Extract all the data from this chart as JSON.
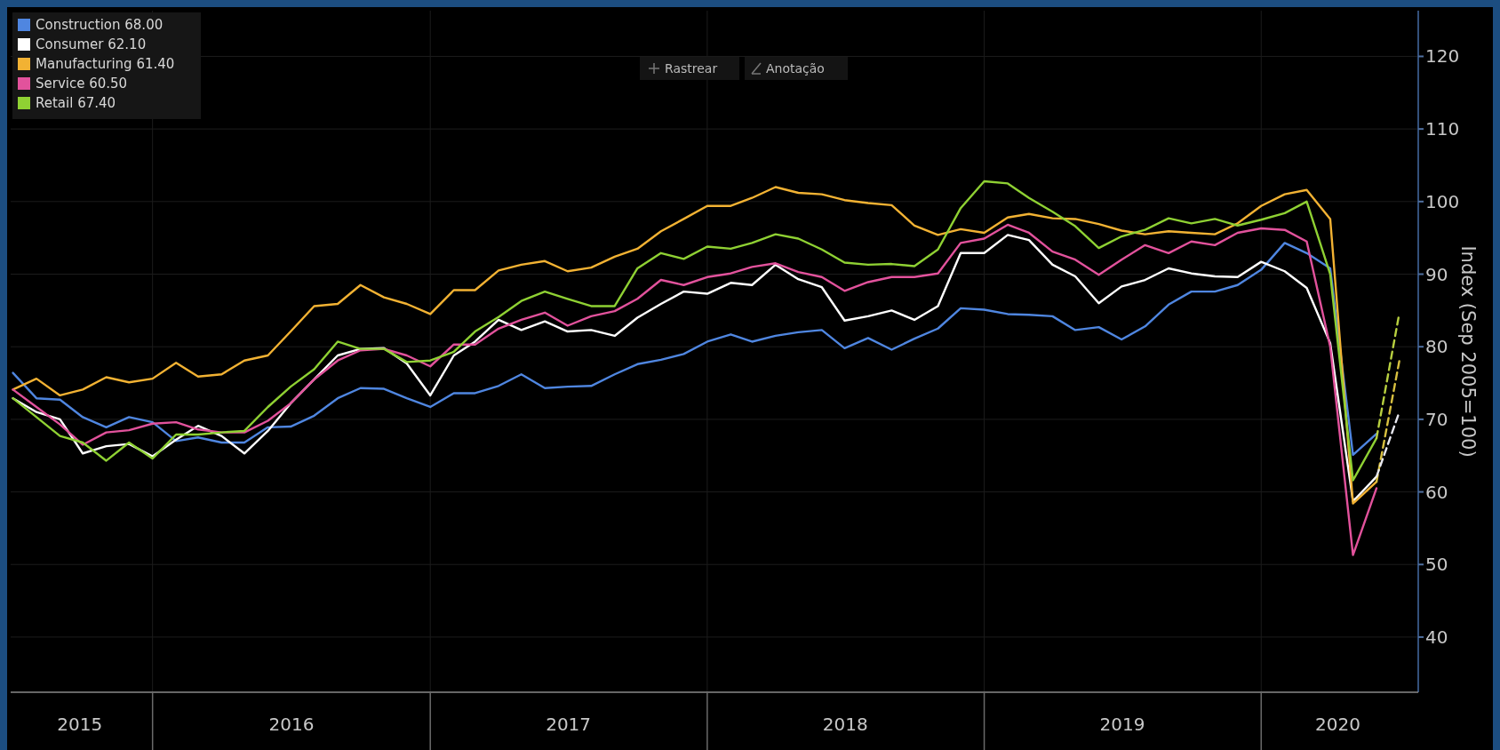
{
  "chart_data": {
    "type": "line",
    "ylabel": "Index (Sep 2005=100)",
    "annotations": [
      "Rastrear",
      "Anotação"
    ],
    "x": [
      "2015-06-30",
      "2015-07-31",
      "2015-08-31",
      "2015-09-30",
      "2015-10-31",
      "2015-11-30",
      "2015-12-31",
      "2016-01-31",
      "2016-02-29",
      "2016-03-31",
      "2016-04-30",
      "2016-05-31",
      "2016-06-30",
      "2016-07-31",
      "2016-08-31",
      "2016-09-30",
      "2016-10-31",
      "2016-11-30",
      "2016-12-31",
      "2017-01-31",
      "2017-02-28",
      "2017-03-31",
      "2017-04-30",
      "2017-05-31",
      "2017-06-30",
      "2017-07-31",
      "2017-08-31",
      "2017-09-30",
      "2017-10-31",
      "2017-11-30",
      "2017-12-31",
      "2018-01-31",
      "2018-02-28",
      "2018-03-31",
      "2018-04-30",
      "2018-05-31",
      "2018-06-30",
      "2018-07-31",
      "2018-08-31",
      "2018-09-30",
      "2018-10-31",
      "2018-11-30",
      "2018-12-31",
      "2019-01-31",
      "2019-02-28",
      "2019-03-31",
      "2019-04-30",
      "2019-05-31",
      "2019-06-30",
      "2019-07-31",
      "2019-08-31",
      "2019-09-30",
      "2019-10-31",
      "2019-11-30",
      "2019-12-31",
      "2020-01-31",
      "2020-02-29",
      "2020-03-31",
      "2020-04-30",
      "2020-05-31"
    ],
    "series": [
      {
        "name": "Construction 68.00",
        "color": "#4f86e0",
        "values": [
          76.4,
          72.9,
          72.7,
          70.3,
          68.9,
          70.3,
          69.6,
          67.0,
          67.5,
          66.8,
          66.8,
          68.9,
          69.0,
          70.5,
          72.9,
          74.3,
          74.2,
          72.9,
          71.7,
          73.6,
          73.6,
          74.6,
          76.2,
          74.3,
          74.5,
          74.6,
          76.2,
          77.6,
          78.2,
          79.0,
          80.7,
          81.7,
          80.7,
          81.5,
          82.0,
          82.3,
          79.8,
          81.2,
          79.6,
          81.1,
          82.5,
          85.3,
          85.1,
          84.5,
          84.4,
          84.2,
          82.3,
          82.7,
          81.0,
          82.8,
          85.8,
          87.6,
          87.6,
          88.5,
          90.6,
          94.3,
          92.9,
          90.8,
          65.1,
          68.0
        ]
      },
      {
        "name": "Consumer 62.10",
        "color": "#ffffff",
        "values": [
          72.9,
          71.0,
          70.0,
          65.3,
          66.3,
          66.6,
          64.9,
          67.2,
          69.1,
          67.7,
          65.3,
          68.4,
          72.2,
          75.5,
          78.8,
          79.7,
          79.8,
          77.7,
          73.3,
          78.8,
          80.7,
          83.7,
          82.3,
          83.5,
          82.1,
          82.3,
          81.5,
          84.0,
          85.9,
          87.6,
          87.3,
          88.8,
          88.5,
          91.3,
          89.3,
          88.2,
          83.6,
          84.2,
          85.0,
          83.7,
          85.6,
          92.9,
          92.9,
          95.4,
          94.7,
          91.3,
          89.7,
          86.0,
          88.3,
          89.2,
          90.8,
          90.1,
          89.7,
          89.6,
          91.7,
          90.4,
          88.1,
          80.5,
          58.7,
          62.1
        ]
      },
      {
        "name": "Manufacturing 61.40",
        "color": "#f2b233",
        "values": [
          74.1,
          75.6,
          73.3,
          74.1,
          75.8,
          75.1,
          75.6,
          77.8,
          75.9,
          76.2,
          78.1,
          78.8,
          82.1,
          85.6,
          85.9,
          88.5,
          86.8,
          85.9,
          84.5,
          87.8,
          87.8,
          90.5,
          91.3,
          91.8,
          90.4,
          90.9,
          92.4,
          93.5,
          95.9,
          97.6,
          99.4,
          99.4,
          100.5,
          102.0,
          101.2,
          101.0,
          100.2,
          99.8,
          99.5,
          96.7,
          95.4,
          96.2,
          95.7,
          97.8,
          98.3,
          97.7,
          97.6,
          96.9,
          96.0,
          95.5,
          95.9,
          95.7,
          95.5,
          97.0,
          99.4,
          101.0,
          101.6,
          97.6,
          58.4,
          61.4
        ]
      },
      {
        "name": "Service 60.50",
        "color": "#e2529c",
        "values": [
          74.1,
          71.7,
          69.3,
          66.5,
          68.2,
          68.5,
          69.4,
          69.6,
          68.6,
          68.2,
          68.2,
          69.8,
          72.2,
          75.5,
          78.1,
          79.5,
          79.7,
          78.8,
          77.3,
          80.3,
          80.3,
          82.5,
          83.7,
          84.7,
          82.9,
          84.2,
          84.9,
          86.6,
          89.2,
          88.5,
          89.6,
          90.1,
          91.0,
          91.5,
          90.3,
          89.6,
          87.7,
          88.9,
          89.6,
          89.6,
          90.1,
          94.3,
          94.9,
          96.8,
          95.7,
          93.1,
          92.0,
          89.9,
          92.0,
          94.0,
          92.9,
          94.5,
          94.0,
          95.7,
          96.3,
          96.1,
          94.5,
          80.0,
          51.3,
          60.5
        ]
      },
      {
        "name": "Retail 67.40",
        "color": "#8fd133",
        "values": [
          72.9,
          70.3,
          67.7,
          66.8,
          64.3,
          66.8,
          64.6,
          67.9,
          67.9,
          68.2,
          68.4,
          71.7,
          74.5,
          76.9,
          80.7,
          79.7,
          79.7,
          77.9,
          78.1,
          79.3,
          82.1,
          84.1,
          86.3,
          87.6,
          86.6,
          85.6,
          85.6,
          90.8,
          92.9,
          92.1,
          93.8,
          93.5,
          94.3,
          95.5,
          94.9,
          93.4,
          91.6,
          91.3,
          91.4,
          91.1,
          93.4,
          99.1,
          102.8,
          102.5,
          100.5,
          98.6,
          96.6,
          93.6,
          95.2,
          96.1,
          97.7,
          97.0,
          97.6,
          96.7,
          97.5,
          98.4,
          100.0,
          90.0,
          61.6,
          67.4
        ]
      },
      {
        "color": "#b8d040",
        "line_style": "dashed",
        "x": [
          "2020-05-31",
          "2020-06-30"
        ],
        "values": [
          67.4,
          84.6
        ]
      },
      {
        "color": "#d8c040",
        "line_style": "dashed",
        "x": [
          "2020-05-31",
          "2020-06-30"
        ],
        "values": [
          61.4,
          78.0
        ]
      },
      {
        "color": "#e8e8f0",
        "line_style": "dashed",
        "x": [
          "2020-05-31",
          "2020-06-30"
        ],
        "values": [
          62.1,
          71.0
        ]
      }
    ],
    "xlim": [
      "2015-06-27",
      "2020-07-25"
    ],
    "xticks": [
      {
        "value": "2015-09-26",
        "label": "2015"
      },
      {
        "value": "2015-12-31",
        "label": null
      },
      {
        "value": "2016-07-01",
        "label": "2016"
      },
      {
        "value": "2016-12-31",
        "label": null
      },
      {
        "value": "2017-07-01",
        "label": "2017"
      },
      {
        "value": "2017-12-31",
        "label": null
      },
      {
        "value": "2018-07-01",
        "label": "2018"
      },
      {
        "value": "2018-12-31",
        "label": null
      },
      {
        "value": "2019-07-01",
        "label": "2019"
      },
      {
        "value": "2019-12-31",
        "label": null
      },
      {
        "value": "2020-04-10",
        "label": "2020"
      }
    ],
    "ylim": [
      32.4,
      126.3
    ],
    "yticks": [
      40,
      50,
      60,
      70,
      80,
      90,
      100,
      110,
      120
    ],
    "grid": true,
    "legend": "top left",
    "line_style": "solid",
    "marker": "none"
  }
}
